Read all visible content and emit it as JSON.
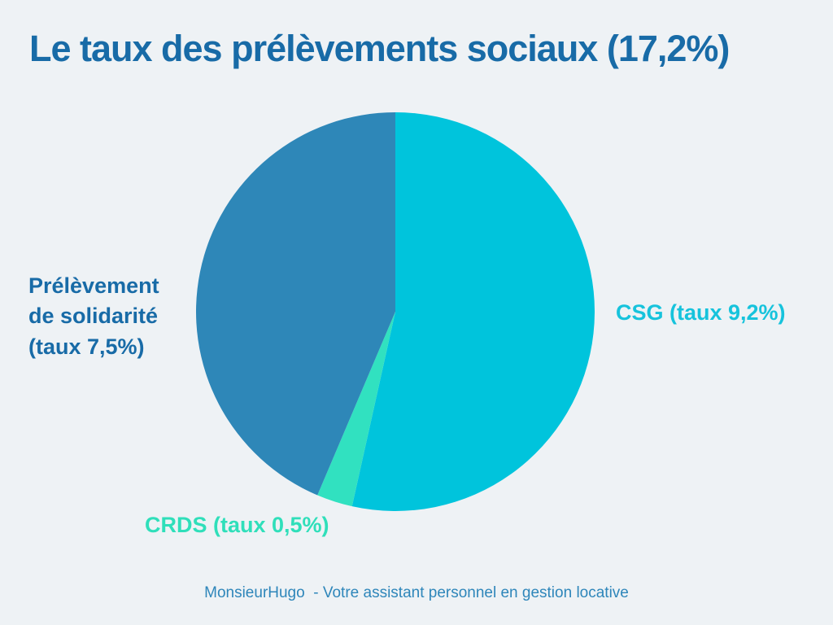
{
  "title": "Le taux des prélèvements sociaux (17,2%)",
  "chart_data": {
    "type": "pie",
    "title": "Le taux des prélèvements sociaux (17,2%)",
    "total_rate_percent": "17,2%",
    "unit": "taux en %",
    "start_angle_deg": 0,
    "direction": "clockwise",
    "legend_position": "labels-around-pie",
    "slices": [
      {
        "name": "csg",
        "label": "CSG (taux 9,2%)",
        "value": 9.2,
        "color": "#00c4dc",
        "label_color": "#16c3dc"
      },
      {
        "name": "crds",
        "label": "CRDS (taux 0,5%)",
        "value": 0.5,
        "color": "#31e1c0",
        "label_color": "#2fdfba"
      },
      {
        "name": "prelevement-solidarite",
        "label": "Prélèvement\nde solidarité\n(taux 7,5%)",
        "value": 7.5,
        "color": "#2e87b8",
        "label_color": "#186ba7"
      }
    ]
  },
  "footer": "MonsieurHugo  - Votre assistant personnel en gestion locative",
  "colors": {
    "background": "#eef2f5",
    "title": "#186ba7",
    "footer": "#2e86ba"
  }
}
